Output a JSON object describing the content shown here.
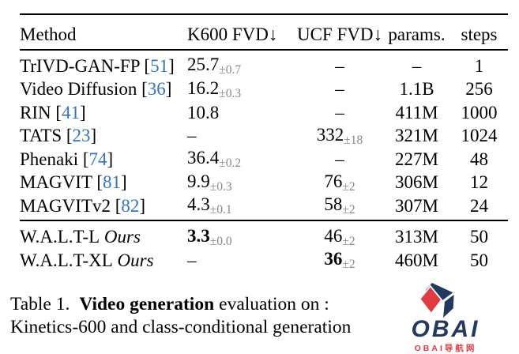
{
  "colors": {
    "citation_blue": "#3274BD",
    "subscript_gray": "#888888",
    "logo_navy": "#24395E",
    "logo_red": "#E03A43"
  },
  "table": {
    "headers": [
      "Method",
      "K600 FVD↓",
      "UCF FVD↓",
      "params.",
      "steps"
    ],
    "groups": [
      {
        "rows": [
          {
            "method": "TrIVD-GAN-FP",
            "cite": "51",
            "suffix": "",
            "k600": {
              "v": "25.7",
              "sub": "±0.7",
              "bold": false
            },
            "ucf": {
              "v": "–",
              "sub": "",
              "bold": false
            },
            "params": "–",
            "steps": "1"
          },
          {
            "method": "Video Diffusion",
            "cite": "36",
            "suffix": "",
            "k600": {
              "v": "16.2",
              "sub": "±0.3",
              "bold": false
            },
            "ucf": {
              "v": "–",
              "sub": "",
              "bold": false
            },
            "params": "1.1B",
            "steps": "256"
          },
          {
            "method": "RIN",
            "cite": "41",
            "suffix": "",
            "k600": {
              "v": "10.8",
              "sub": "",
              "bold": false
            },
            "ucf": {
              "v": "–",
              "sub": "",
              "bold": false
            },
            "params": "411M",
            "steps": "1000"
          },
          {
            "method": "TATS",
            "cite": "23",
            "suffix": "",
            "k600": {
              "v": "–",
              "sub": "",
              "bold": false
            },
            "ucf": {
              "v": "332",
              "sub": "±18",
              "bold": false
            },
            "params": "321M",
            "steps": "1024"
          },
          {
            "method": "Phenaki",
            "cite": "74",
            "suffix": "",
            "k600": {
              "v": "36.4",
              "sub": "±0.2",
              "bold": false
            },
            "ucf": {
              "v": "–",
              "sub": "",
              "bold": false
            },
            "params": "227M",
            "steps": "48"
          },
          {
            "method": "MAGVIT",
            "cite": "81",
            "suffix": "",
            "k600": {
              "v": "9.9",
              "sub": "±0.3",
              "bold": false
            },
            "ucf": {
              "v": "76",
              "sub": "±2",
              "bold": false
            },
            "params": "306M",
            "steps": "12"
          },
          {
            "method": "MAGVITv2",
            "cite": "82",
            "suffix": "",
            "k600": {
              "v": "4.3",
              "sub": "±0.1",
              "bold": false
            },
            "ucf": {
              "v": "58",
              "sub": "±2",
              "bold": false
            },
            "params": "307M",
            "steps": "24"
          }
        ]
      },
      {
        "rows": [
          {
            "method": "W.A.L.T-L",
            "cite": null,
            "suffix": "Ours",
            "k600": {
              "v": "3.3",
              "sub": "±0.0",
              "bold": true
            },
            "ucf": {
              "v": "46",
              "sub": "±2",
              "bold": false
            },
            "params": "313M",
            "steps": "50"
          },
          {
            "method": "W.A.L.T-XL",
            "cite": null,
            "suffix": "Ours",
            "k600": {
              "v": "–",
              "sub": "",
              "bold": false
            },
            "ucf": {
              "v": "36",
              "sub": "±2",
              "bold": true
            },
            "params": "460M",
            "steps": "50"
          }
        ]
      }
    ]
  },
  "caption": {
    "label": "Table 1.",
    "bold": "Video generation",
    "rest": "evaluation on :",
    "line2": "Kinetics-600 and class-conditional generation"
  },
  "logo": {
    "word": "OBAI",
    "subtext": "OBAI导航网"
  }
}
